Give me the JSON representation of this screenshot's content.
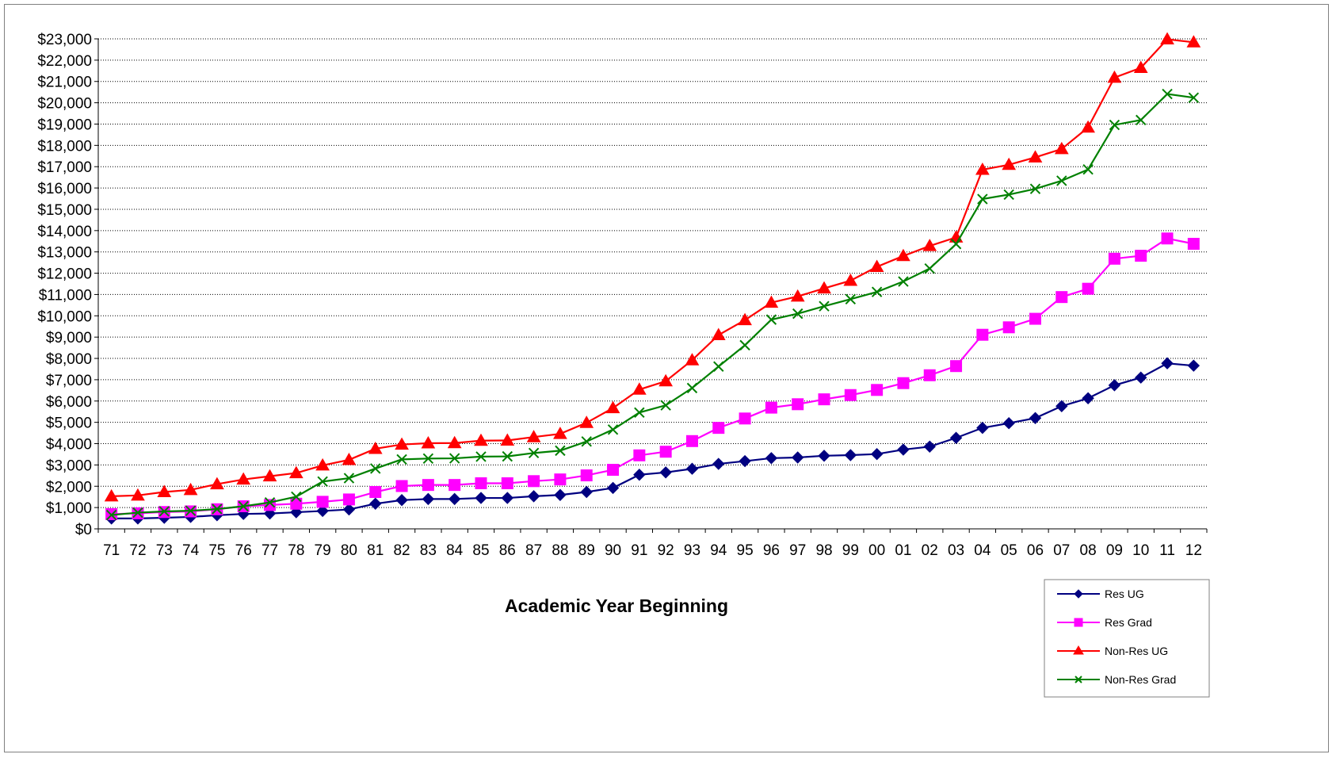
{
  "chart_data": {
    "type": "line",
    "title": "",
    "xlabel": "Academic Year Beginning",
    "ylabel": "",
    "ylim": [
      0,
      23000
    ],
    "ytick_step": 1000,
    "ytick_prefix": "$",
    "grid": "horizontal-dotted",
    "legend_position": "bottom-right",
    "categories": [
      "71",
      "72",
      "73",
      "74",
      "75",
      "76",
      "77",
      "78",
      "79",
      "80",
      "81",
      "82",
      "83",
      "84",
      "85",
      "86",
      "87",
      "88",
      "89",
      "90",
      "91",
      "92",
      "93",
      "94",
      "95",
      "96",
      "97",
      "98",
      "99",
      "00",
      "01",
      "02",
      "03",
      "04",
      "05",
      "06",
      "07",
      "08",
      "09",
      "10",
      "11",
      "12"
    ],
    "series": [
      {
        "name": "Res UG",
        "color": "#000080",
        "marker": "diamond",
        "values": [
          488,
          488,
          520,
          560,
          640,
          700,
          720,
          780,
          840,
          910,
          1180,
          1350,
          1400,
          1400,
          1450,
          1450,
          1530,
          1590,
          1730,
          1920,
          2540,
          2650,
          2820,
          3050,
          3180,
          3320,
          3350,
          3430,
          3460,
          3510,
          3720,
          3860,
          4270,
          4740,
          4960,
          5200,
          5760,
          6130,
          6740,
          7100,
          7770,
          7660
        ]
      },
      {
        "name": "Res Grad",
        "color": "#FF00FF",
        "marker": "square",
        "values": [
          690,
          730,
          790,
          820,
          920,
          1060,
          1120,
          1180,
          1270,
          1380,
          1730,
          2010,
          2060,
          2060,
          2140,
          2140,
          2240,
          2320,
          2510,
          2770,
          3450,
          3620,
          4120,
          4740,
          5180,
          5690,
          5850,
          6080,
          6280,
          6520,
          6840,
          7210,
          7640,
          9110,
          9460,
          9860,
          10880,
          11270,
          12680,
          12820,
          13630,
          13380
        ]
      },
      {
        "name": "Non-Res UG",
        "color": "#FF0000",
        "marker": "triangle",
        "values": [
          1530,
          1570,
          1730,
          1830,
          2100,
          2320,
          2470,
          2620,
          2980,
          3240,
          3760,
          3960,
          4020,
          4030,
          4140,
          4150,
          4310,
          4460,
          4980,
          5670,
          6540,
          6930,
          7920,
          9100,
          9800,
          10620,
          10910,
          11290,
          11650,
          12300,
          12810,
          13280,
          13680,
          16860,
          17090,
          17440,
          17830,
          18840,
          21180,
          21640,
          22980,
          22840
        ]
      },
      {
        "name": "Non-Res Grad",
        "color": "#008000",
        "marker": "x",
        "values": [
          650,
          760,
          820,
          850,
          930,
          1060,
          1240,
          1510,
          2220,
          2380,
          2830,
          3260,
          3300,
          3310,
          3390,
          3400,
          3560,
          3670,
          4100,
          4660,
          5460,
          5800,
          6610,
          7620,
          8620,
          9820,
          10100,
          10450,
          10780,
          11120,
          11610,
          12220,
          13370,
          15480,
          15690,
          15960,
          16340,
          16870,
          18960,
          19190,
          20410,
          20240
        ]
      }
    ]
  }
}
